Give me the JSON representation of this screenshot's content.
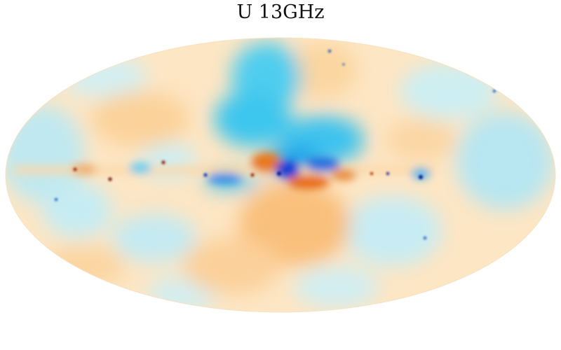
{
  "title": "U 13GHz"
}
